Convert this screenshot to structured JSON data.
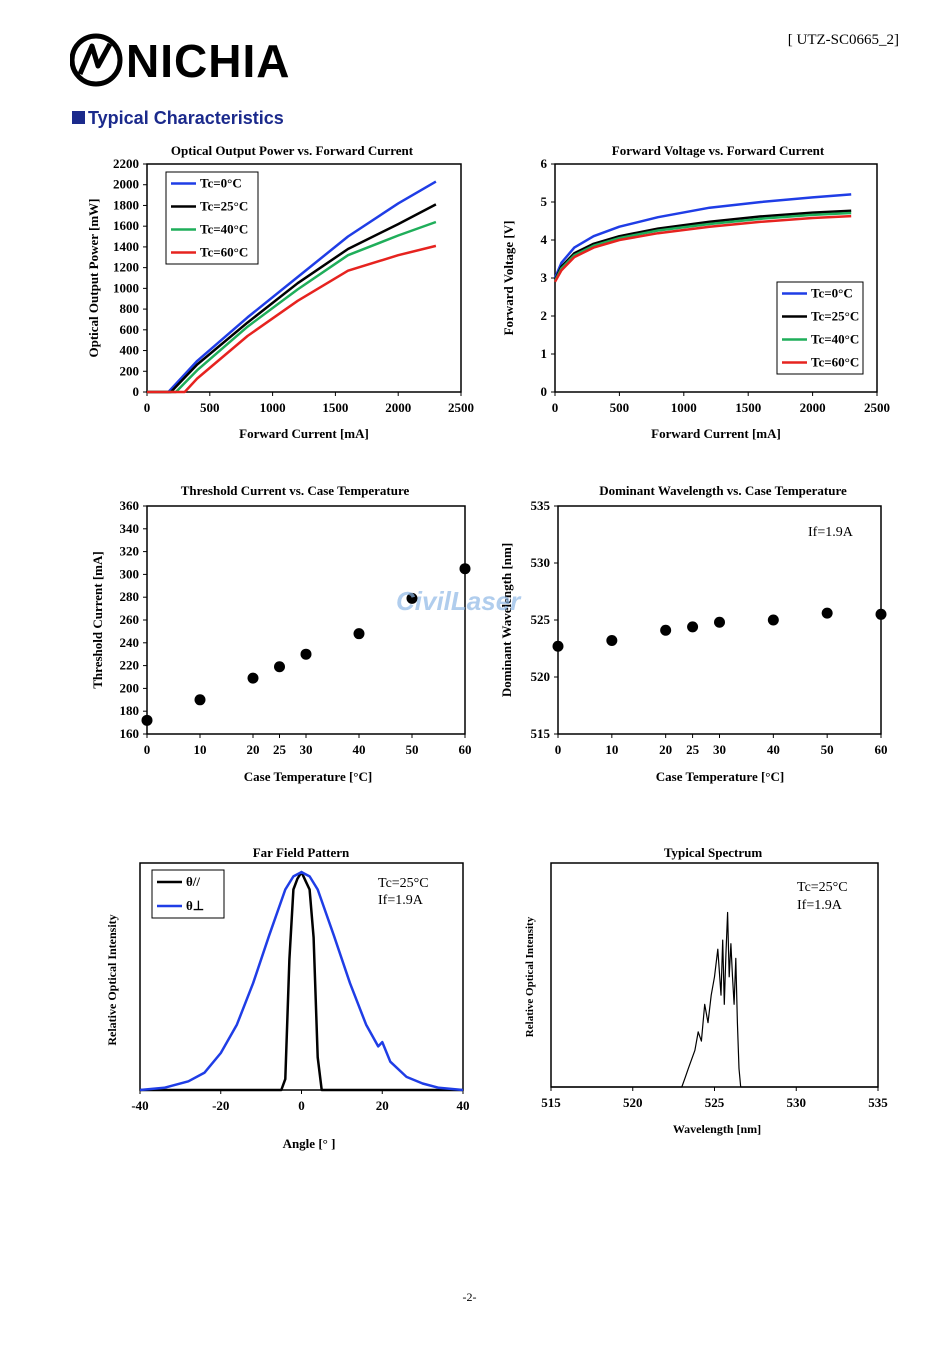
{
  "header": {
    "brand": "NICHIA",
    "doc_id": "[ UTZ-SC0665_2]",
    "section_title": "Typical  Characteristics"
  },
  "watermark": "CivilLaser",
  "footer": {
    "page": "-2-"
  },
  "colors": {
    "blue": "#1f3de6",
    "black": "#000000",
    "green": "#1fae5a",
    "red": "#e6231f",
    "section": "#1b2a8c"
  },
  "chart_data": [
    {
      "id": "popt",
      "type": "line",
      "title": "Optical Output Power vs. Forward Current",
      "xlabel": "Forward Current [mA]",
      "ylabel": "Optical Output Power [mW]",
      "xlim": [
        0,
        2500
      ],
      "ylim": [
        0,
        2200
      ],
      "xticks": [
        0,
        500,
        1000,
        1500,
        2000,
        2500
      ],
      "yticks": [
        0,
        200,
        400,
        600,
        800,
        1000,
        1200,
        1400,
        1600,
        1800,
        2000,
        2200
      ],
      "legend": "top-left",
      "series": [
        {
          "name": "Tc=0°C",
          "color": "#1f3de6",
          "x": [
            0,
            170,
            400,
            800,
            1200,
            1600,
            2000,
            2300
          ],
          "y": [
            0,
            0,
            300,
            720,
            1110,
            1500,
            1820,
            2030
          ]
        },
        {
          "name": "Tc=25°C",
          "color": "#000000",
          "x": [
            0,
            190,
            400,
            800,
            1200,
            1600,
            2000,
            2300
          ],
          "y": [
            0,
            0,
            265,
            670,
            1050,
            1380,
            1620,
            1810
          ]
        },
        {
          "name": "Tc=40°C",
          "color": "#1fae5a",
          "x": [
            0,
            230,
            400,
            800,
            1200,
            1600,
            2000,
            2300
          ],
          "y": [
            0,
            0,
            210,
            630,
            990,
            1320,
            1510,
            1640
          ]
        },
        {
          "name": "Tc=60°C",
          "color": "#e6231f",
          "x": [
            0,
            300,
            400,
            800,
            1200,
            1600,
            2000,
            2300
          ],
          "y": [
            0,
            0,
            130,
            540,
            880,
            1170,
            1320,
            1410
          ]
        }
      ]
    },
    {
      "id": "vf",
      "type": "line",
      "title": "Forward Voltage vs. Forward Current",
      "xlabel": "Forward Current [mA]",
      "ylabel": "Forward Voltage [V]",
      "xlim": [
        0,
        2500
      ],
      "ylim": [
        0,
        6
      ],
      "xticks": [
        0,
        500,
        1000,
        1500,
        2000,
        2500
      ],
      "yticks": [
        0,
        1,
        2,
        3,
        4,
        5,
        6
      ],
      "legend": "bottom-right",
      "series": [
        {
          "name": "Tc=0°C",
          "color": "#1f3de6",
          "x": [
            0,
            50,
            150,
            300,
            500,
            800,
            1200,
            1600,
            2000,
            2300
          ],
          "y": [
            3.0,
            3.4,
            3.8,
            4.1,
            4.35,
            4.6,
            4.85,
            5.0,
            5.12,
            5.2
          ]
        },
        {
          "name": "Tc=25°C",
          "color": "#000000",
          "x": [
            0,
            50,
            150,
            300,
            500,
            800,
            1200,
            1600,
            2000,
            2300
          ],
          "y": [
            2.95,
            3.3,
            3.65,
            3.9,
            4.1,
            4.3,
            4.48,
            4.62,
            4.72,
            4.77
          ]
        },
        {
          "name": "Tc=40°C",
          "color": "#1fae5a",
          "x": [
            0,
            50,
            150,
            300,
            500,
            800,
            1200,
            1600,
            2000,
            2300
          ],
          "y": [
            2.92,
            3.25,
            3.6,
            3.85,
            4.05,
            4.25,
            4.42,
            4.56,
            4.66,
            4.71
          ]
        },
        {
          "name": "Tc=60°C",
          "color": "#e6231f",
          "x": [
            0,
            50,
            150,
            300,
            500,
            800,
            1200,
            1600,
            2000,
            2300
          ],
          "y": [
            2.9,
            3.2,
            3.55,
            3.8,
            4.0,
            4.18,
            4.35,
            4.48,
            4.58,
            4.63
          ]
        }
      ]
    },
    {
      "id": "ith",
      "type": "scatter",
      "title": "Threshold Current vs. Case Temperature",
      "xlabel": "Case Temperature [°C]",
      "ylabel": "Threshold Current [mA]",
      "xlim": [
        0,
        60
      ],
      "ylim": [
        160,
        360
      ],
      "xticks": [
        0,
        10,
        20,
        25,
        30,
        40,
        50,
        60
      ],
      "yticks": [
        160,
        180,
        200,
        220,
        240,
        260,
        280,
        300,
        320,
        340,
        360
      ],
      "x": [
        0,
        10,
        20,
        25,
        30,
        40,
        50,
        60
      ],
      "y": [
        172,
        190,
        209,
        219,
        230,
        248,
        279,
        305
      ]
    },
    {
      "id": "wl",
      "type": "scatter",
      "title": "Dominant Wavelength vs. Case Temperature",
      "xlabel": "Case Temperature [°C]",
      "ylabel": "Dominant Wavelength [nm]",
      "annotation": "If=1.9A",
      "xlim": [
        0,
        60
      ],
      "ylim": [
        515,
        535
      ],
      "xticks": [
        0,
        10,
        20,
        25,
        30,
        40,
        50,
        60
      ],
      "yticks": [
        515,
        520,
        525,
        530,
        535
      ],
      "x": [
        0,
        10,
        20,
        25,
        30,
        40,
        50,
        60
      ],
      "y": [
        522.7,
        523.2,
        524.1,
        524.4,
        524.8,
        525.0,
        525.6,
        525.5
      ]
    },
    {
      "id": "ffp",
      "type": "line",
      "title": "Far Field Pattern",
      "xlabel": "Angle [° ]",
      "ylabel": "Relative Optical Intensity",
      "annotations": [
        "Tc=25°C",
        "If=1.9A"
      ],
      "xlim": [
        -40,
        40
      ],
      "ylim": [
        0,
        1
      ],
      "xticks": [
        -40,
        -20,
        0,
        20,
        40
      ],
      "legend": "top-left",
      "series": [
        {
          "name": "θ//",
          "color": "#000000",
          "x": [
            -40,
            -5,
            -4,
            -3,
            -2,
            -1,
            0,
            1,
            2,
            3,
            4,
            5,
            40
          ],
          "y": [
            0,
            0,
            0.05,
            0.6,
            0.92,
            0.97,
            1.0,
            0.96,
            0.92,
            0.7,
            0.15,
            0,
            0
          ]
        },
        {
          "name": "θ⊥",
          "color": "#1f3de6",
          "x": [
            -40,
            -34,
            -28,
            -24,
            -20,
            -16,
            -12,
            -8,
            -4,
            -2,
            0,
            2,
            4,
            8,
            12,
            16,
            19,
            20,
            22,
            26,
            30,
            34,
            40
          ],
          "y": [
            0,
            0.01,
            0.04,
            0.08,
            0.17,
            0.3,
            0.49,
            0.71,
            0.92,
            0.98,
            1.0,
            0.98,
            0.92,
            0.71,
            0.49,
            0.3,
            0.2,
            0.22,
            0.13,
            0.06,
            0.03,
            0.01,
            0
          ]
        }
      ]
    },
    {
      "id": "spec",
      "type": "line",
      "title": "Typical Spectrum",
      "xlabel": "Wavelength [nm]",
      "ylabel": "Relative Optical Intensity",
      "annotations": [
        "Tc=25°C",
        "If=1.9A"
      ],
      "xlim": [
        515,
        535
      ],
      "ylim": [
        0,
        1
      ],
      "xticks": [
        515,
        520,
        525,
        530,
        535
      ],
      "series": [
        {
          "name": "",
          "color": "#000000",
          "x": [
            515,
            523.0,
            523.2,
            523.4,
            523.6,
            523.8,
            524.0,
            524.2,
            524.4,
            524.6,
            524.8,
            525.0,
            525.2,
            525.4,
            525.5,
            525.6,
            525.7,
            525.8,
            525.9,
            526.0,
            526.1,
            526.2,
            526.3,
            526.4,
            526.5,
            526.6,
            535
          ],
          "y": [
            0,
            0,
            0.05,
            0.1,
            0.15,
            0.2,
            0.3,
            0.25,
            0.45,
            0.35,
            0.5,
            0.6,
            0.75,
            0.5,
            0.8,
            0.45,
            0.72,
            0.95,
            0.6,
            0.78,
            0.6,
            0.45,
            0.7,
            0.35,
            0.1,
            0,
            0
          ]
        }
      ]
    }
  ]
}
